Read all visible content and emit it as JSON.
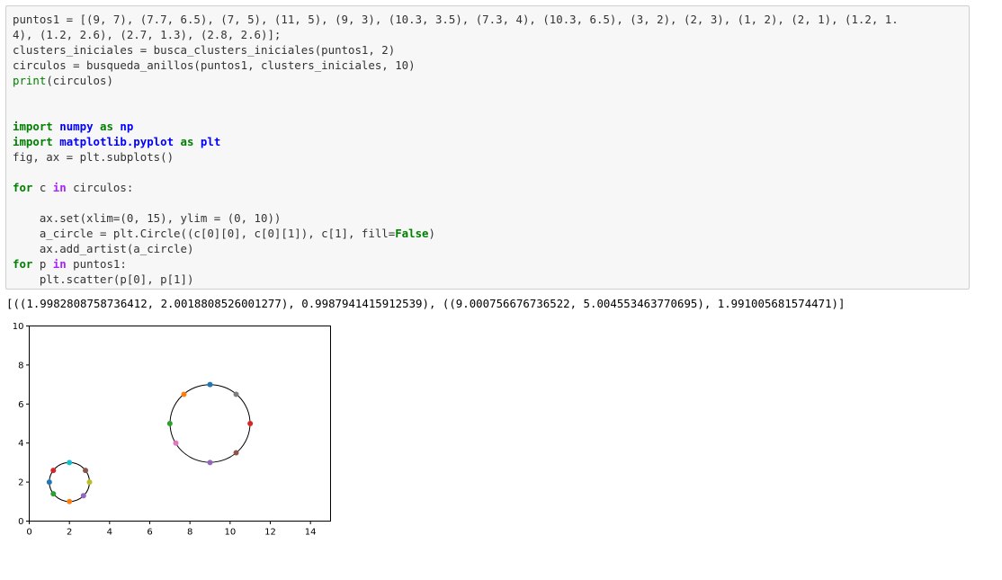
{
  "code_cell": {
    "lines": [
      [
        {
          "t": "puntos1 = [(9, 7), (7.7, 6.5), (7, 5), (11, 5), (9, 3), (10.3, 3.5), (7.3, 4), (10.3, 6.5), (3, 2), (2, 3), (1, 2), (2, 1), (1.2, 1.",
          "c": ""
        }
      ],
      [
        {
          "t": "4), (1.2, 2.6), (2.7, 1.3), (2.8, 2.6)];",
          "c": ""
        }
      ],
      [
        {
          "t": "clusters_iniciales = busca_clusters_iniciales(puntos1, 2)",
          "c": ""
        }
      ],
      [
        {
          "t": "circulos = busqueda_anillos(puntos1, clusters_iniciales, 10)",
          "c": ""
        }
      ],
      [
        {
          "t": "print",
          "c": "builtin"
        },
        {
          "t": "(circulos)",
          "c": ""
        }
      ],
      [],
      [],
      [
        {
          "t": "import",
          "c": "kw"
        },
        {
          "t": " ",
          "c": ""
        },
        {
          "t": "numpy",
          "c": "mod"
        },
        {
          "t": " ",
          "c": ""
        },
        {
          "t": "as",
          "c": "kw"
        },
        {
          "t": " ",
          "c": ""
        },
        {
          "t": "np",
          "c": "mod"
        }
      ],
      [
        {
          "t": "import",
          "c": "kw"
        },
        {
          "t": " ",
          "c": ""
        },
        {
          "t": "matplotlib.pyplot",
          "c": "mod"
        },
        {
          "t": " ",
          "c": ""
        },
        {
          "t": "as",
          "c": "kw"
        },
        {
          "t": " ",
          "c": ""
        },
        {
          "t": "plt",
          "c": "mod"
        }
      ],
      [
        {
          "t": "fig, ax = plt.subplots()",
          "c": ""
        }
      ],
      [],
      [
        {
          "t": "for",
          "c": "kw"
        },
        {
          "t": " c ",
          "c": ""
        },
        {
          "t": "in",
          "c": "kw-in"
        },
        {
          "t": " circulos:",
          "c": ""
        }
      ],
      [],
      [
        {
          "t": "    ax.set(xlim=(0, 15), ylim = (0, 10))",
          "c": ""
        }
      ],
      [
        {
          "t": "    a_circle = plt.Circle((c[0][0], c[0][1]), c[1], fill=",
          "c": ""
        },
        {
          "t": "False",
          "c": "kw"
        },
        {
          "t": ")",
          "c": ""
        }
      ],
      [
        {
          "t": "    ax.add_artist(a_circle)",
          "c": ""
        }
      ],
      [
        {
          "t": "for",
          "c": "kw"
        },
        {
          "t": " p ",
          "c": ""
        },
        {
          "t": "in",
          "c": "kw-in"
        },
        {
          "t": " puntos1:",
          "c": ""
        }
      ],
      [
        {
          "t": "    plt.scatter(p[0], p[1])",
          "c": ""
        }
      ]
    ]
  },
  "output_text": "[((1.9982808758736412, 2.0018808526001277), 0.9987941415912539), ((9.000756676736522, 5.004553463770695), 1.991005681574471)]",
  "chart_data": {
    "type": "scatter",
    "xlim": [
      0,
      15
    ],
    "ylim": [
      0,
      10
    ],
    "xticks": [
      "0",
      "2",
      "4",
      "6",
      "8",
      "10",
      "12",
      "14"
    ],
    "yticks": [
      "0",
      "2",
      "4",
      "6",
      "8",
      "10"
    ],
    "xtick_values": [
      0,
      2,
      4,
      6,
      8,
      10,
      12,
      14
    ],
    "ytick_values": [
      0,
      2,
      4,
      6,
      8,
      10
    ],
    "grid": false,
    "points": [
      {
        "x": 9,
        "y": 7,
        "color": "#1f77b4"
      },
      {
        "x": 7.7,
        "y": 6.5,
        "color": "#ff7f0e"
      },
      {
        "x": 7,
        "y": 5,
        "color": "#2ca02c"
      },
      {
        "x": 11,
        "y": 5,
        "color": "#d62728"
      },
      {
        "x": 9,
        "y": 3,
        "color": "#9467bd"
      },
      {
        "x": 10.3,
        "y": 3.5,
        "color": "#8c564b"
      },
      {
        "x": 7.3,
        "y": 4,
        "color": "#e377c2"
      },
      {
        "x": 10.3,
        "y": 6.5,
        "color": "#7f7f7f"
      },
      {
        "x": 3,
        "y": 2,
        "color": "#bcbd22"
      },
      {
        "x": 2,
        "y": 3,
        "color": "#17becf"
      },
      {
        "x": 1,
        "y": 2,
        "color": "#1f77b4"
      },
      {
        "x": 2,
        "y": 1,
        "color": "#ff7f0e"
      },
      {
        "x": 1.2,
        "y": 1.4,
        "color": "#2ca02c"
      },
      {
        "x": 1.2,
        "y": 2.6,
        "color": "#d62728"
      },
      {
        "x": 2.7,
        "y": 1.3,
        "color": "#9467bd"
      },
      {
        "x": 2.8,
        "y": 2.6,
        "color": "#8c564b"
      }
    ],
    "circles": [
      {
        "cx": 1.9982808758736412,
        "cy": 2.0018808526001277,
        "r": 0.9987941415912539
      },
      {
        "cx": 9.000756676736522,
        "cy": 5.004553463770695,
        "r": 1.991005681574471
      }
    ]
  }
}
